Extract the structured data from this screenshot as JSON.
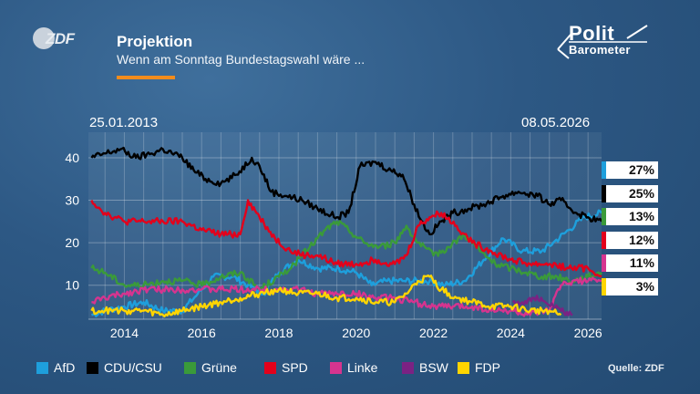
{
  "header": {
    "logo_text": "ZDF",
    "title": "Projektion",
    "subtitle": "Wenn am Sonntag Bundestagswahl wäre ...",
    "brand_line1": "Polit",
    "brand_line2": "Barometer",
    "accent_color": "#f28c1c"
  },
  "dates": {
    "start": "25.01.2013",
    "end": "08.05.2026"
  },
  "source": "Quelle: ZDF",
  "badges": [
    {
      "value": "27%",
      "color": "#1e9fdc"
    },
    {
      "value": "25%",
      "color": "#000000"
    },
    {
      "value": "13%",
      "color": "#3a9a3a"
    },
    {
      "value": "12%",
      "color": "#e3001b"
    },
    {
      "value": "11%",
      "color": "#d6348f"
    },
    {
      "value": "3%",
      "color": "#ffd500"
    }
  ],
  "chart_data": {
    "type": "line",
    "title": "Projektion",
    "subtitle": "Wenn am Sonntag Bundestagswahl wäre ...",
    "xlim": [
      2013.07,
      2026.35
    ],
    "ylim": [
      2,
      46
    ],
    "yticks": [
      10,
      20,
      30,
      40
    ],
    "xticks": [
      2014,
      2016,
      2018,
      2020,
      2022,
      2024,
      2026
    ],
    "grid": true,
    "legend_position": "bottom",
    "series": [
      {
        "name": "AfD",
        "color": "#1e9fdc",
        "x": [
          2013.15,
          2013.5,
          2014.0,
          2014.5,
          2015.0,
          2015.5,
          2015.9,
          2016.3,
          2016.8,
          2017.2,
          2017.6,
          2018.0,
          2018.5,
          2019.0,
          2019.5,
          2020.0,
          2020.4,
          2020.8,
          2021.2,
          2021.6,
          2021.9,
          2022.3,
          2022.8,
          2023.3,
          2023.8,
          2024.3,
          2024.8,
          2025.1,
          2025.5,
          2025.9,
          2026.35
        ],
        "y": [
          3,
          4,
          5,
          6,
          4,
          4,
          8,
          12,
          12,
          10,
          8,
          13,
          16,
          14,
          14,
          13,
          10,
          11,
          11,
          11,
          11,
          10,
          11,
          16,
          21,
          18,
          18,
          20,
          23,
          26,
          27
        ]
      },
      {
        "name": "CDU/CSU",
        "color": "#000000",
        "x": [
          2013.15,
          2013.5,
          2013.9,
          2014.3,
          2014.7,
          2015.0,
          2015.5,
          2015.8,
          2016.1,
          2016.5,
          2016.9,
          2017.3,
          2017.5,
          2017.8,
          2018.2,
          2018.6,
          2019.0,
          2019.5,
          2019.8,
          2020.1,
          2020.5,
          2020.9,
          2021.2,
          2021.5,
          2021.7,
          2021.9,
          2022.2,
          2022.5,
          2022.9,
          2023.3,
          2023.8,
          2024.2,
          2024.7,
          2025.0,
          2025.3,
          2025.7,
          2026.0,
          2026.35
        ],
        "y": [
          40,
          41,
          42,
          40,
          41,
          42,
          40,
          37,
          35,
          34,
          36,
          40,
          38,
          32,
          31,
          30,
          28,
          26,
          27,
          38,
          39,
          37,
          36,
          29,
          25,
          22,
          25,
          27,
          28,
          29,
          31,
          32,
          31,
          29,
          30,
          27,
          26,
          25
        ]
      },
      {
        "name": "Grüne",
        "color": "#3a9a3a",
        "x": [
          2013.15,
          2013.5,
          2014.0,
          2014.5,
          2015.0,
          2015.5,
          2016.0,
          2016.5,
          2017.0,
          2017.5,
          2018.0,
          2018.4,
          2018.8,
          2019.2,
          2019.5,
          2019.8,
          2020.2,
          2020.6,
          2021.0,
          2021.3,
          2021.6,
          2022.0,
          2022.4,
          2022.8,
          2023.2,
          2023.6,
          2024.0,
          2024.4,
          2024.8,
          2025.2,
          2025.6,
          2026.0,
          2026.35
        ],
        "y": [
          14,
          13,
          10,
          10,
          11,
          11,
          10,
          12,
          13,
          9,
          12,
          15,
          19,
          23,
          25,
          23,
          20,
          19,
          20,
          24,
          20,
          17,
          19,
          22,
          18,
          15,
          14,
          13,
          12,
          12,
          11,
          12,
          13
        ]
      },
      {
        "name": "SPD",
        "color": "#e3001b",
        "x": [
          2013.15,
          2013.5,
          2014.0,
          2014.5,
          2015.0,
          2015.5,
          2016.0,
          2016.5,
          2017.0,
          2017.2,
          2017.5,
          2017.9,
          2018.3,
          2018.7,
          2019.0,
          2019.5,
          2020.0,
          2020.5,
          2021.0,
          2021.3,
          2021.6,
          2021.9,
          2022.2,
          2022.6,
          2023.0,
          2023.5,
          2024.0,
          2024.5,
          2025.0,
          2025.5,
          2026.0,
          2026.35
        ],
        "y": [
          30,
          27,
          25,
          25,
          25,
          25,
          23,
          22,
          22,
          30,
          26,
          21,
          18,
          17,
          17,
          15,
          15,
          16,
          15,
          17,
          24,
          26,
          27,
          24,
          20,
          18,
          16,
          15,
          15,
          14,
          14,
          12
        ]
      },
      {
        "name": "Linke",
        "color": "#d6348f",
        "x": [
          2013.15,
          2013.5,
          2014.0,
          2014.5,
          2015.0,
          2015.5,
          2016.0,
          2016.5,
          2017.0,
          2017.5,
          2018.0,
          2018.5,
          2019.0,
          2019.5,
          2020.0,
          2020.5,
          2021.0,
          2021.5,
          2022.0,
          2022.5,
          2023.0,
          2023.5,
          2024.0,
          2024.5,
          2025.0,
          2025.3,
          2025.6,
          2026.0,
          2026.35
        ],
        "y": [
          6,
          7,
          8,
          9,
          9,
          9,
          9,
          9,
          9,
          9,
          9,
          9,
          8,
          8,
          8,
          7,
          7,
          6,
          5,
          5,
          5,
          4,
          4,
          3,
          4,
          10,
          11,
          11,
          11
        ]
      },
      {
        "name": "BSW",
        "color": "#7b2283",
        "x": [
          2024.05,
          2024.3,
          2024.6,
          2024.9,
          2025.1,
          2025.3,
          2025.6
        ],
        "y": [
          6,
          6,
          7,
          6,
          5,
          4,
          3
        ]
      },
      {
        "name": "FDP",
        "color": "#ffd500",
        "x": [
          2013.15,
          2013.5,
          2014.0,
          2014.5,
          2015.0,
          2015.5,
          2016.0,
          2016.5,
          2017.0,
          2017.5,
          2018.0,
          2018.5,
          2019.0,
          2019.5,
          2020.0,
          2020.5,
          2021.0,
          2021.3,
          2021.6,
          2021.9,
          2022.2,
          2022.6,
          2023.0,
          2023.5,
          2024.0,
          2024.5,
          2025.0,
          2025.3
        ],
        "y": [
          4,
          4,
          4,
          4,
          3,
          4,
          5,
          6,
          7,
          8,
          9,
          8,
          8,
          7,
          7,
          6,
          6,
          8,
          11,
          12,
          9,
          7,
          6,
          5,
          5,
          4,
          4,
          3
        ]
      }
    ]
  },
  "legend": [
    {
      "label": "AfD",
      "color": "#1e9fdc"
    },
    {
      "label": "CDU/CSU",
      "color": "#000000"
    },
    {
      "label": "Grüne",
      "color": "#3a9a3a"
    },
    {
      "label": "SPD",
      "color": "#e3001b"
    },
    {
      "label": "Linke",
      "color": "#d6348f"
    },
    {
      "label": "BSW",
      "color": "#7b2283"
    },
    {
      "label": "FDP",
      "color": "#ffd500"
    }
  ]
}
